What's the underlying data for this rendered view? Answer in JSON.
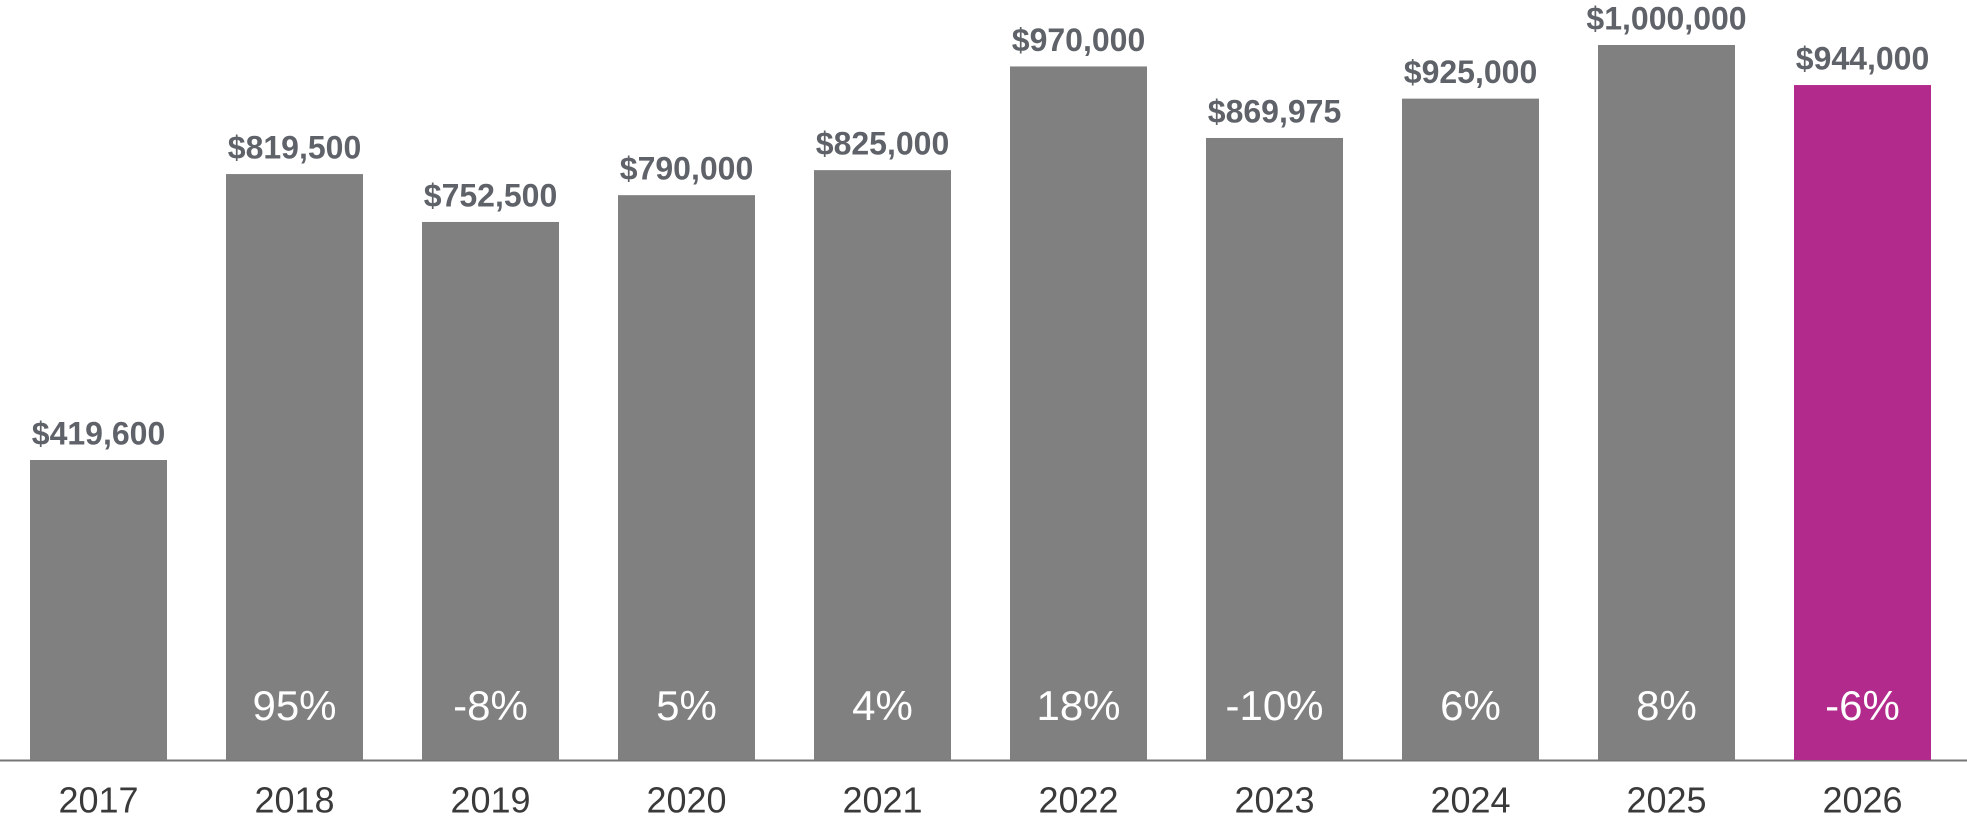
{
  "chart_data": {
    "type": "bar",
    "categories": [
      "2017",
      "2018",
      "2019",
      "2020",
      "2021",
      "2022",
      "2023",
      "2024",
      "2025",
      "2026"
    ],
    "values": [
      419600,
      819500,
      752500,
      790000,
      825000,
      970000,
      869975,
      925000,
      1000000,
      944000
    ],
    "value_labels": [
      "$419,600",
      "$819,500",
      "$752,500",
      "$790,000",
      "$825,000",
      "$970,000",
      "$869,975",
      "$925,000",
      "$1,000,000",
      "$944,000"
    ],
    "colors": [
      "#808080",
      "#808080",
      "#808080",
      "#808080",
      "#808080",
      "#808080",
      "#808080",
      "#808080",
      "#808080",
      "#b12a8c"
    ],
    "changes": [
      null,
      95,
      -8,
      5,
      4,
      18,
      -10,
      6,
      8,
      -6
    ],
    "change_labels": [
      null,
      "95%",
      "-8%",
      "5%",
      "4%",
      "18%",
      "-10%",
      "6%",
      "8%",
      "-6%"
    ],
    "ylim": [
      0,
      1000000
    ]
  }
}
